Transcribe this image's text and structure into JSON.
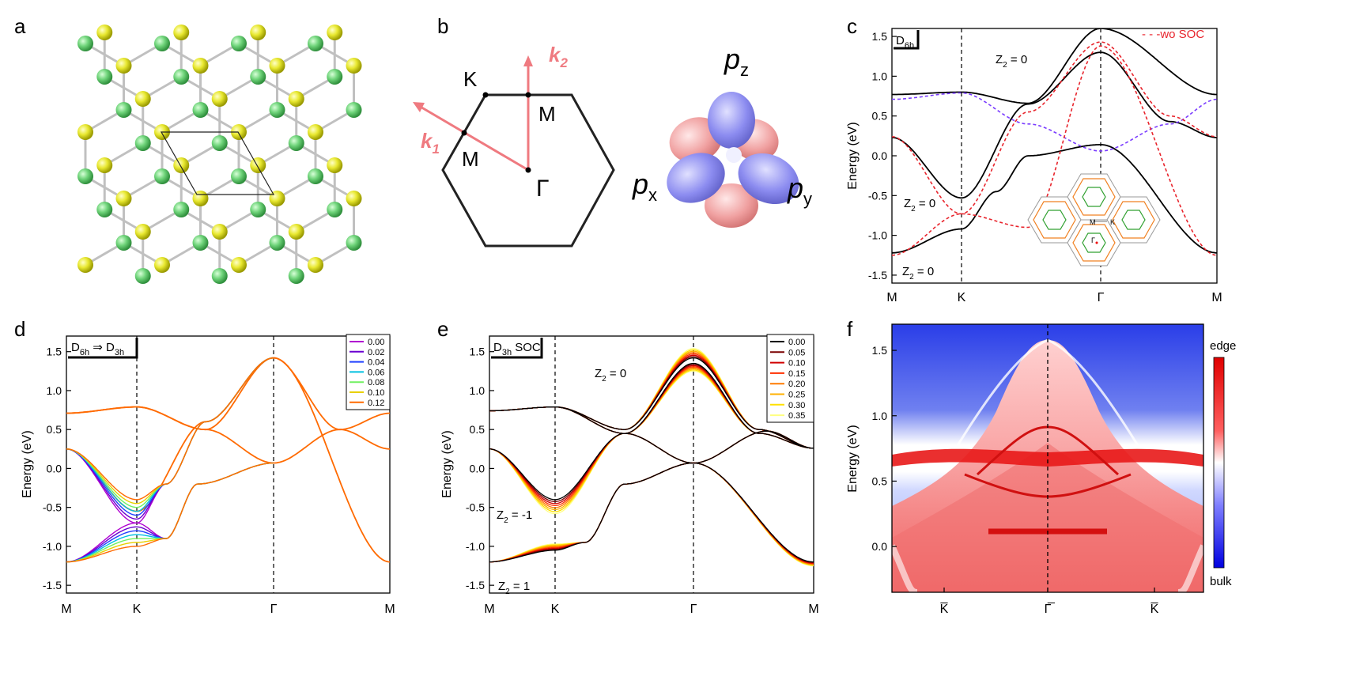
{
  "panels": {
    "a": {
      "letter": "a"
    },
    "b": {
      "letter": "b",
      "k2": "k",
      "k2_sub": "2",
      "k1": "k",
      "k1_sub": "1",
      "K": "K",
      "M_top": "M",
      "M_left": "M",
      "Gamma": "Γ",
      "pz": "p",
      "pz_sub": "z",
      "px": "p",
      "px_sub": "x",
      "py": "p",
      "py_sub": "y"
    },
    "c": {
      "letter": "c",
      "sym": "D",
      "sym_sub": "6h",
      "legend": "- - -wo SOC",
      "z2_top": "Z",
      "z2_mid": "Z",
      "z2_bot": "Z",
      "z2_sub": "2",
      "z2_top_val": " = 0",
      "z2_mid_val": " = 0",
      "z2_bot_val": " = 0",
      "bz_M": "M",
      "bz_K": "K",
      "bz_G": "Γ"
    },
    "d": {
      "letter": "d",
      "sym": "D",
      "sym_sub1": "6h",
      "arrow": " ⇒ D",
      "sym_sub2": "3h"
    },
    "e": {
      "letter": "e",
      "sym": "D",
      "sym_sub": "3h",
      "soc": " SOC",
      "z2_top": "Z",
      "z2_mid": "Z",
      "z2_bot": "Z",
      "z2_sub": "2",
      "z2_top_val": " = 0",
      "z2_mid_val": " = -1",
      "z2_bot_val": " = 1"
    },
    "f": {
      "letter": "f",
      "cb_top": "edge",
      "cb_bot": "bulk"
    }
  },
  "chart_data": [
    {
      "panel": "c",
      "type": "line",
      "ylabel": "Energy (eV)",
      "ylim": [
        -1.6,
        1.6
      ],
      "yticks": [
        "-1.5",
        "-1.0",
        "-0.5",
        "0.0",
        "0.5",
        "1.0",
        "1.5"
      ],
      "xticks": [
        "M",
        "K",
        "Γ",
        "M"
      ],
      "series": [
        {
          "x": [
            "M",
            "K",
            "Γ",
            "M"
          ],
          "values": [
            0.77,
            0.8,
            1.6,
            0.77
          ]
        },
        {
          "x": [
            "M",
            "K",
            "Γ",
            "M"
          ],
          "values": [
            0.23,
            -0.53,
            1.3,
            0.23
          ]
        },
        {
          "x": [
            "M",
            "K",
            "Γ",
            "M"
          ],
          "values": [
            -1.22,
            -0.92,
            0.14,
            -1.22
          ]
        },
        {
          "name": "wo SOC",
          "x": [
            "M",
            "K",
            "Γ",
            "M"
          ],
          "values": [
            0.71,
            0.79,
            1.43,
            0.71
          ]
        },
        {
          "name": "wo SOC",
          "x": [
            "M",
            "K",
            "Γ",
            "M"
          ],
          "values": [
            -1.25,
            -0.73,
            0.06,
            -1.25
          ]
        }
      ]
    },
    {
      "panel": "d",
      "type": "line",
      "ylabel": "Energy (eV)",
      "ylim": [
        -1.6,
        1.7
      ],
      "yticks": [
        "-1.5",
        "-1.0",
        "-0.5",
        "0.0",
        "0.5",
        "1.0",
        "1.5"
      ],
      "xticks": [
        "M",
        "K",
        "Γ",
        "M"
      ],
      "legend": [
        "0.00",
        "0.02",
        "0.04",
        "0.06",
        "0.08",
        "0.10",
        "0.12"
      ],
      "legend_colors": [
        "#b000d0",
        "#6a00d0",
        "#2040ff",
        "#00c0e0",
        "#70f060",
        "#e8d000",
        "#ff6a00"
      ]
    },
    {
      "panel": "e",
      "type": "line",
      "ylabel": "Energy (eV)",
      "ylim": [
        -1.6,
        1.7
      ],
      "yticks": [
        "-1.5",
        "-1.0",
        "-0.5",
        "0.0",
        "0.5",
        "1.0",
        "1.5"
      ],
      "xticks": [
        "M",
        "K",
        "Γ",
        "M"
      ],
      "legend": [
        "0.00",
        "0.05",
        "0.10",
        "0.15",
        "0.20",
        "0.25",
        "0.30",
        "0.35"
      ],
      "legend_colors": [
        "#000000",
        "#7a0000",
        "#d00000",
        "#ff3000",
        "#ff7a00",
        "#ffb000",
        "#ffe000",
        "#ffff80"
      ]
    },
    {
      "panel": "f",
      "type": "heatmap",
      "ylabel": "Energy (eV)",
      "ylim": [
        -0.35,
        1.7
      ],
      "yticks": [
        "0.0",
        "0.5",
        "1.0",
        "1.5"
      ],
      "xticks": [
        "K̅",
        "Γ̅",
        "K̅"
      ]
    }
  ]
}
